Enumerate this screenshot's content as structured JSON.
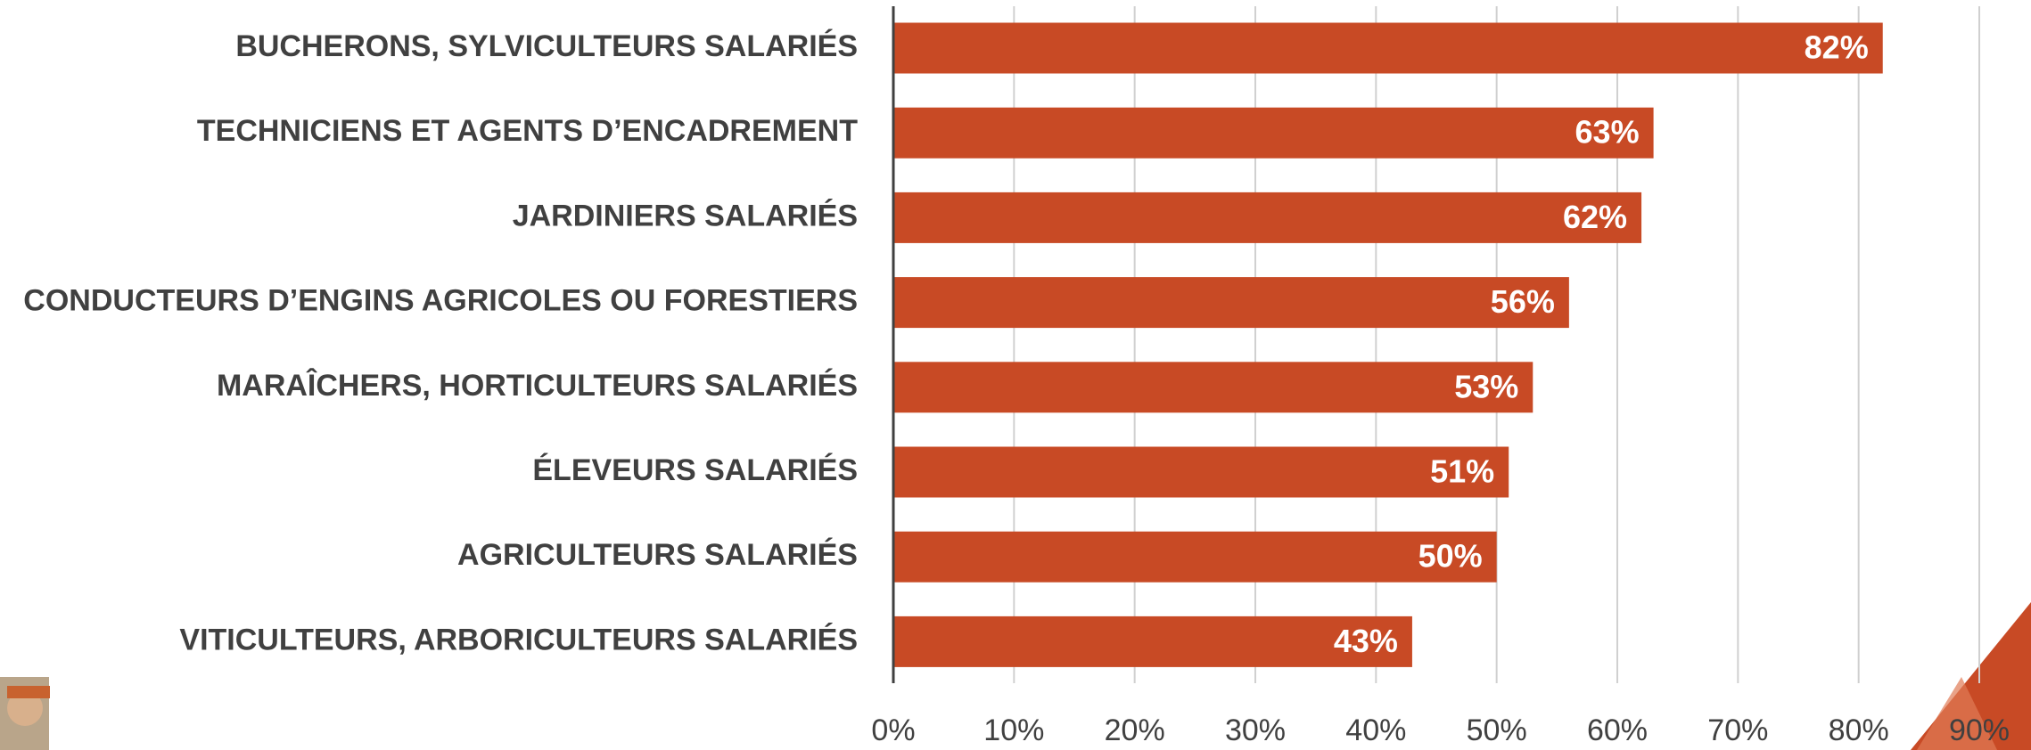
{
  "chart_data": {
    "type": "bar",
    "orientation": "horizontal",
    "categories": [
      "BUCHERONS, SYLVICULTEURS SALARIÉS",
      "TECHNICIENS ET AGENTS D’ENCADREMENT",
      "JARDINIERS SALARIÉS",
      "CONDUCTEURS D’ENGINS AGRICOLES OU FORESTIERS",
      "MARAÎCHERS, HORTICULTEURS SALARIÉS",
      "ÉLEVEURS SALARIÉS",
      "AGRICULTEURS SALARIÉS",
      "VITICULTEURS, ARBORICULTEURS SALARIÉS"
    ],
    "values": [
      82,
      63,
      62,
      56,
      53,
      51,
      50,
      43
    ],
    "value_labels": [
      "82%",
      "63%",
      "62%",
      "56%",
      "53%",
      "51%",
      "50%",
      "43%"
    ],
    "color": "#c84a25",
    "xlim": [
      0,
      90
    ],
    "xticks": [
      {
        "value": 0,
        "label": "0%"
      },
      {
        "value": 10,
        "label": "10%"
      },
      {
        "value": 20,
        "label": "20%"
      },
      {
        "value": 30,
        "label": "30%"
      },
      {
        "value": 40,
        "label": "40%"
      },
      {
        "value": 50,
        "label": "50%"
      },
      {
        "value": 60,
        "label": "60%"
      },
      {
        "value": 70,
        "label": "70%"
      },
      {
        "value": 80,
        "label": "80%"
      },
      {
        "value": 90,
        "label": "90%"
      }
    ],
    "grid": true
  }
}
